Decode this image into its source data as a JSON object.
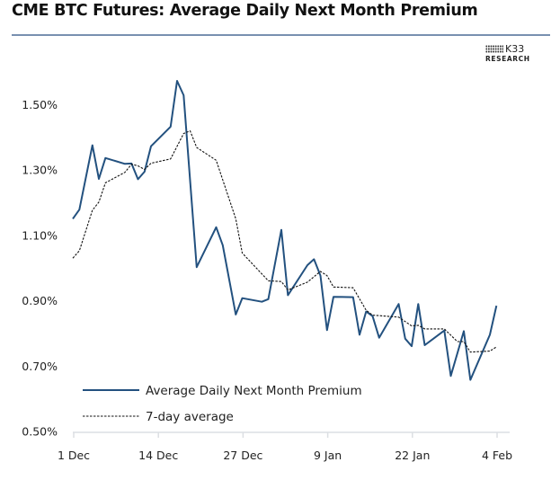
{
  "chart_data": {
    "type": "line",
    "title": "CME BTC Futures: Average Daily Next Month Premium",
    "xlabel": "",
    "ylabel": "",
    "ylim": [
      0.5,
      1.6
    ],
    "yticks": [
      "0.50%",
      "0.70%",
      "0.90%",
      "1.10%",
      "1.30%",
      "1.50%"
    ],
    "ytick_values": [
      0.5,
      0.7,
      0.9,
      1.1,
      1.3,
      1.5
    ],
    "xticks": [
      "1 Dec",
      "14 Dec",
      "27 Dec",
      "9 Jan",
      "22 Jan",
      "4 Feb"
    ],
    "grid": false,
    "legend_position": "bottom-left",
    "series": [
      {
        "name": "Average Daily Next Month Premium",
        "color": "#23517f",
        "style": "solid",
        "x": [
          "Dec 1",
          "Dec 2",
          "Dec 4",
          "Dec 5",
          "Dec 6",
          "Dec 9",
          "Dec 10",
          "Dec 11",
          "Dec 12",
          "Dec 13",
          "Dec 16",
          "Dec 17",
          "Dec 18",
          "Dec 20",
          "Dec 23",
          "Dec 24",
          "Dec 26",
          "Dec 27",
          "Dec 30",
          "Dec 31",
          "Jan 2",
          "Jan 3",
          "Jan 6",
          "Jan 7",
          "Jan 8",
          "Jan 9",
          "Jan 10",
          "Jan 13",
          "Jan 14",
          "Jan 15",
          "Jan 16",
          "Jan 17",
          "Jan 20",
          "Jan 21",
          "Jan 22",
          "Jan 23",
          "Jan 24",
          "Jan 27",
          "Jan 28",
          "Jan 30",
          "Jan 31",
          "Feb 3",
          "Feb 4"
        ],
        "values": [
          1.151,
          1.179,
          1.376,
          1.273,
          1.337,
          1.319,
          1.32,
          1.272,
          1.295,
          1.373,
          1.433,
          1.573,
          1.529,
          1.003,
          1.125,
          1.07,
          0.858,
          0.908,
          0.897,
          0.905,
          1.117,
          0.917,
          1.009,
          1.027,
          0.977,
          0.81,
          0.912,
          0.911,
          0.796,
          0.867,
          0.853,
          0.787,
          0.89,
          0.784,
          0.761,
          0.89,
          0.764,
          0.809,
          0.67,
          0.807,
          0.658,
          0.796,
          0.885
        ]
      },
      {
        "name": "7-day average",
        "color": "#111111",
        "style": "dashed",
        "x": [
          "Dec 1",
          "Dec 2",
          "Dec 4",
          "Dec 5",
          "Dec 6",
          "Dec 9",
          "Dec 10",
          "Dec 11",
          "Dec 12",
          "Dec 13",
          "Dec 16",
          "Dec 18",
          "Dec 19",
          "Dec 20",
          "Dec 23",
          "Dec 26",
          "Dec 27",
          "Dec 31",
          "Jan 2",
          "Jan 3",
          "Jan 6",
          "Jan 8",
          "Jan 9",
          "Jan 10",
          "Jan 13",
          "Jan 15",
          "Jan 16",
          "Jan 20",
          "Jan 22",
          "Jan 23",
          "Jan 24",
          "Jan 27",
          "Jan 29",
          "Jan 30",
          "Jan 31",
          "Feb 3",
          "Feb 4"
        ],
        "values": [
          1.03,
          1.053,
          1.177,
          1.202,
          1.261,
          1.293,
          1.318,
          1.313,
          1.302,
          1.321,
          1.334,
          1.412,
          1.42,
          1.369,
          1.33,
          1.151,
          1.046,
          0.961,
          0.959,
          0.933,
          0.957,
          0.99,
          0.977,
          0.942,
          0.94,
          0.871,
          0.856,
          0.85,
          0.823,
          0.825,
          0.814,
          0.814,
          0.775,
          0.775,
          0.743,
          0.746,
          0.759
        ]
      }
    ]
  },
  "logo": {
    "brand": "K33",
    "sub": "RESEARCH"
  }
}
